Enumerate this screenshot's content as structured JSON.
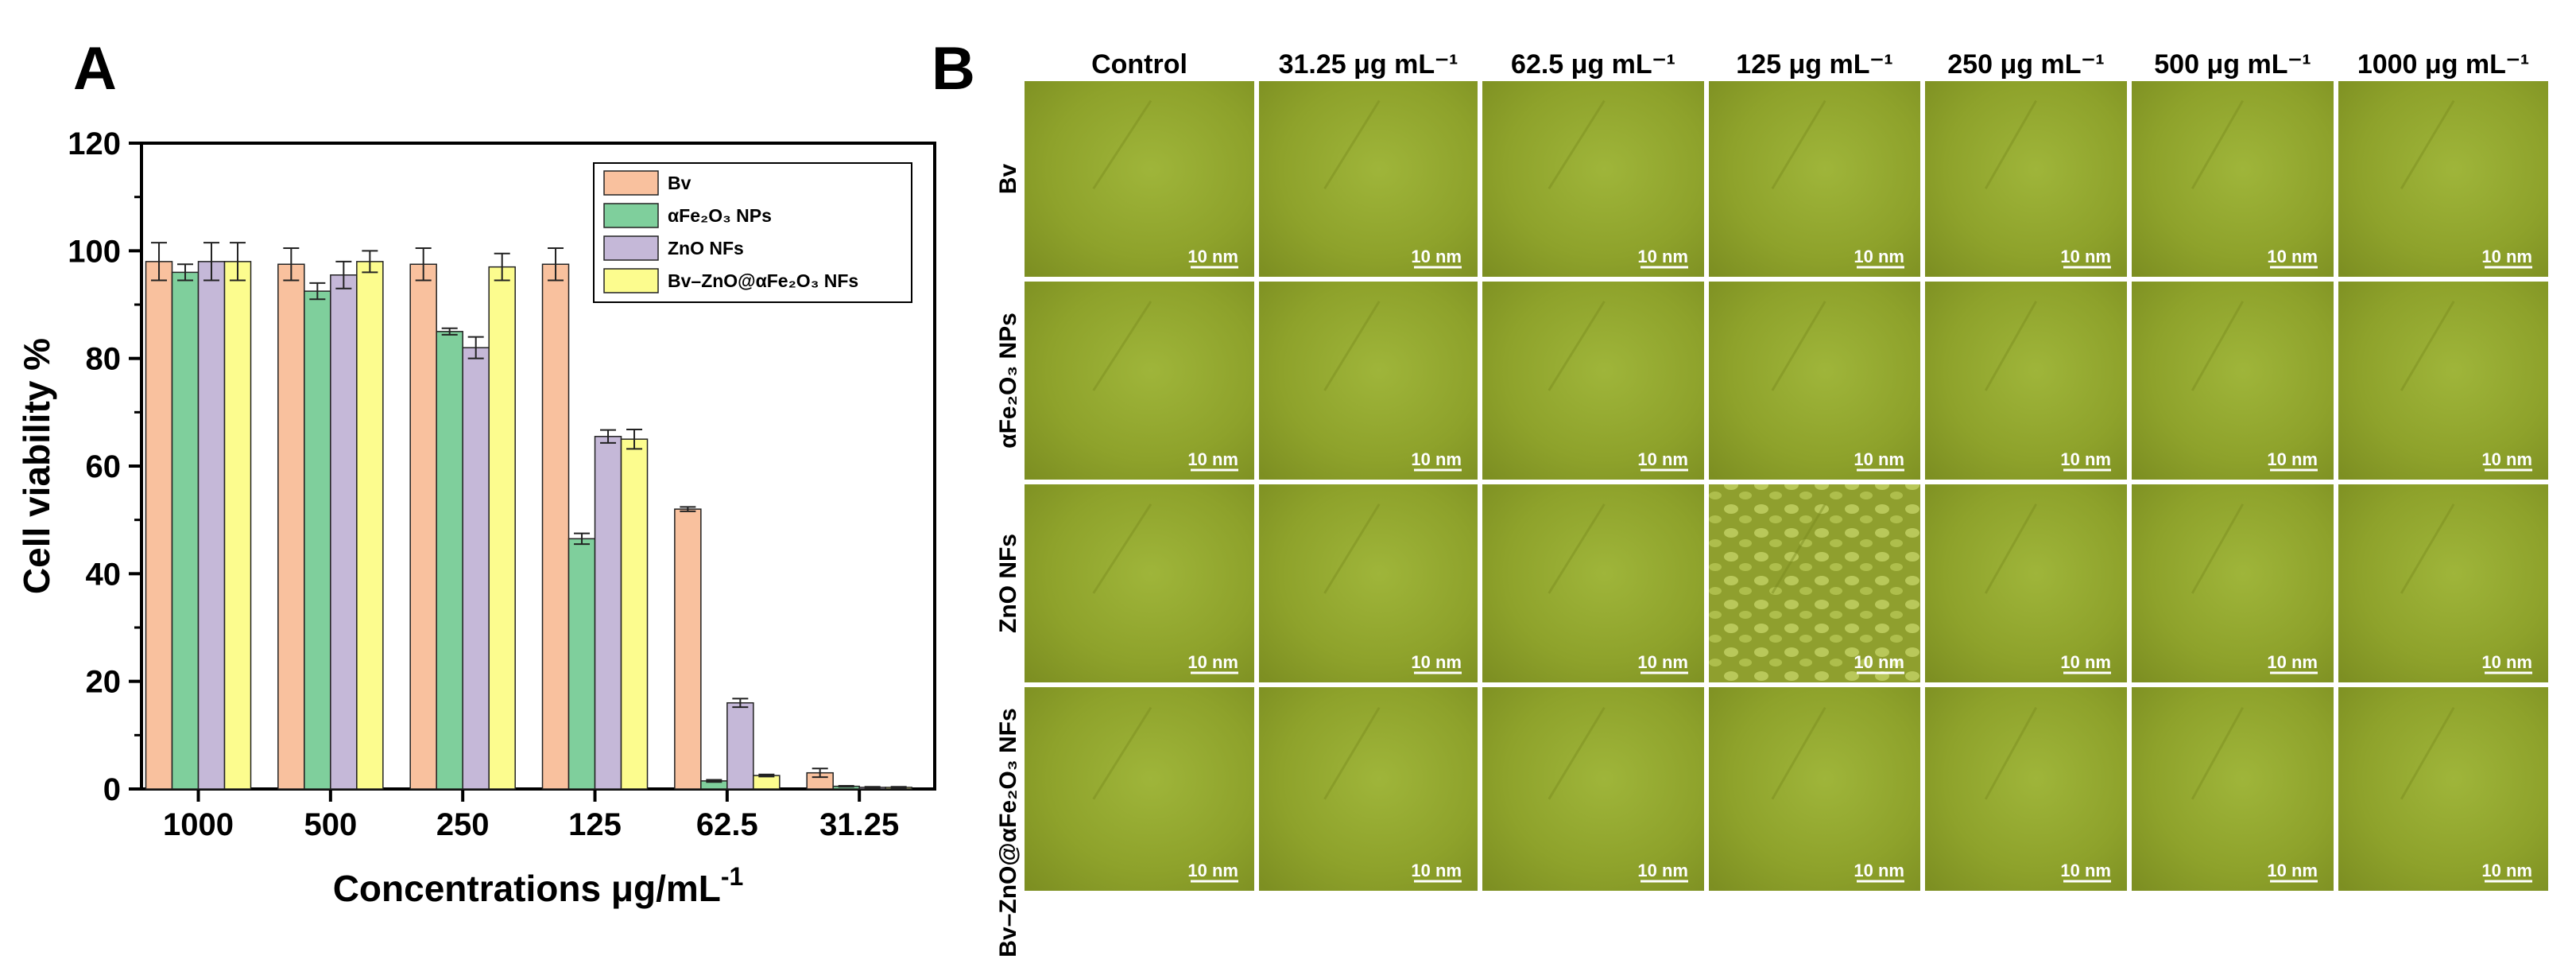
{
  "panel_labels": {
    "a": "A",
    "b": "B"
  },
  "chart_data": {
    "type": "bar",
    "title": "",
    "xlabel": "Concentrations μg/mL",
    "xlabel_sup": "-1",
    "ylabel": "Cell viability %",
    "ylim": [
      0,
      120
    ],
    "yticks": [
      0,
      20,
      40,
      60,
      80,
      100,
      120
    ],
    "categories": [
      "1000",
      "500",
      "250",
      "125",
      "62.5",
      "31.25"
    ],
    "series": [
      {
        "name": "Bv",
        "color": "#f9c19e",
        "values": [
          98,
          97.5,
          97.5,
          97.5,
          52,
          3
        ],
        "errors": [
          3.5,
          3,
          3,
          3,
          0.4,
          0.8
        ]
      },
      {
        "name": "αFe₂O₃ NPs",
        "color": "#7fcf9c",
        "values": [
          96,
          92.5,
          85,
          46.5,
          1.5,
          0.5
        ],
        "errors": [
          1.5,
          1.5,
          0.6,
          1,
          0.2,
          0.1
        ]
      },
      {
        "name": "ZnO NFs",
        "color": "#c5b8d8",
        "values": [
          98,
          95.5,
          82,
          65.5,
          16,
          0.3
        ],
        "errors": [
          3.5,
          2.5,
          2,
          1.2,
          0.8,
          0.1
        ]
      },
      {
        "name": "Bv–ZnO@αFe₂O₃ NFs",
        "color": "#fcfc8e",
        "values": [
          98,
          98,
          97,
          65,
          2.5,
          0.3
        ],
        "errors": [
          3.5,
          2,
          2.5,
          1.8,
          0.2,
          0.1
        ]
      }
    ],
    "legend_position": "top-right"
  },
  "micrograph_grid": {
    "columns": [
      "Control",
      "31.25 μg mL⁻¹",
      "62.5 μg mL⁻¹",
      "125 μg mL⁻¹",
      "250 μg mL⁻¹",
      "500 μg mL⁻¹",
      "1000 μg mL⁻¹"
    ],
    "rows": [
      "Bv",
      "αFe₂O₃ NPs",
      "ZnO NFs",
      "Bv–ZnO@αFe₂O₃ NFs"
    ],
    "scale_bar_label": "10 nm",
    "tile_color": "#8fa42a"
  }
}
